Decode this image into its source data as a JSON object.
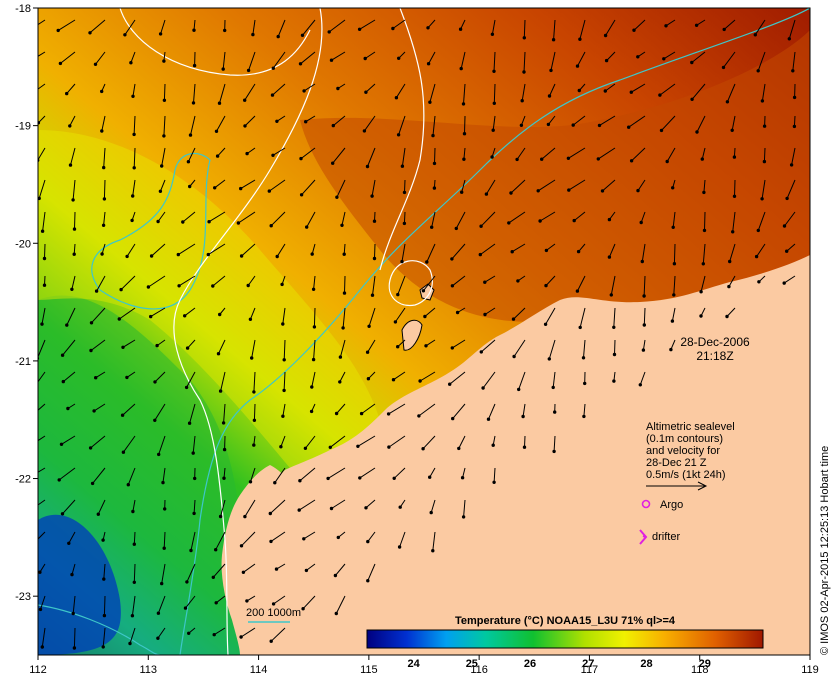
{
  "map": {
    "lon_range": [
      112,
      119
    ],
    "lat_range": [
      -18,
      -23.5
    ],
    "x_ticks": [
      "112",
      "113",
      "114",
      "115",
      "116",
      "117",
      "118",
      "119"
    ],
    "y_ticks": [
      "-18",
      "-19",
      "-20",
      "-21",
      "-22",
      "-23"
    ],
    "land_color": "#fbcaa2",
    "contour_200m_color": "#ffffff",
    "contour_1000m_color": "#3ec7c9"
  },
  "stamp": {
    "date": "28-Dec-2006",
    "time": "21:18Z"
  },
  "velocity_legend": {
    "line1": "Altimetric sealevel",
    "line2": "(0.1m contours)",
    "line3": "and velocity for",
    "line4": "28-Dec 21 Z",
    "line5": "0.5m/s (1kt 24h)"
  },
  "symbols": {
    "argo": "Argo",
    "drifter": "drifter",
    "argo_color": "#e020e0",
    "drifter_color": "#e020e0"
  },
  "contour_legend": {
    "label": "200  1000m"
  },
  "colorbar": {
    "title": "Temperature (°C) NOAA15_L3U 71% ql>=4",
    "ticks": [
      "24",
      "25",
      "26",
      "27",
      "28",
      "29"
    ],
    "range": [
      23.2,
      30.0
    ]
  },
  "credit": "© IMOS 02-Apr-2015 12:25:13 Hobart time"
}
